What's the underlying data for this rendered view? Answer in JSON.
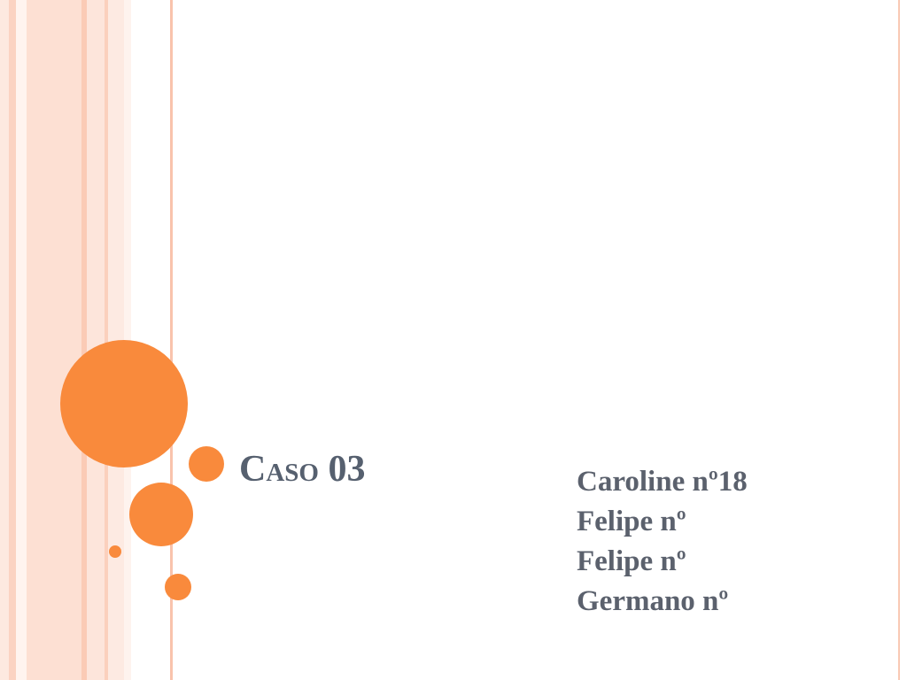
{
  "slide": {
    "title": "Caso 03",
    "lines": [
      "Caroline nº18",
      "Felipe nº",
      "Felipe nº",
      "Germano nº"
    ]
  }
}
